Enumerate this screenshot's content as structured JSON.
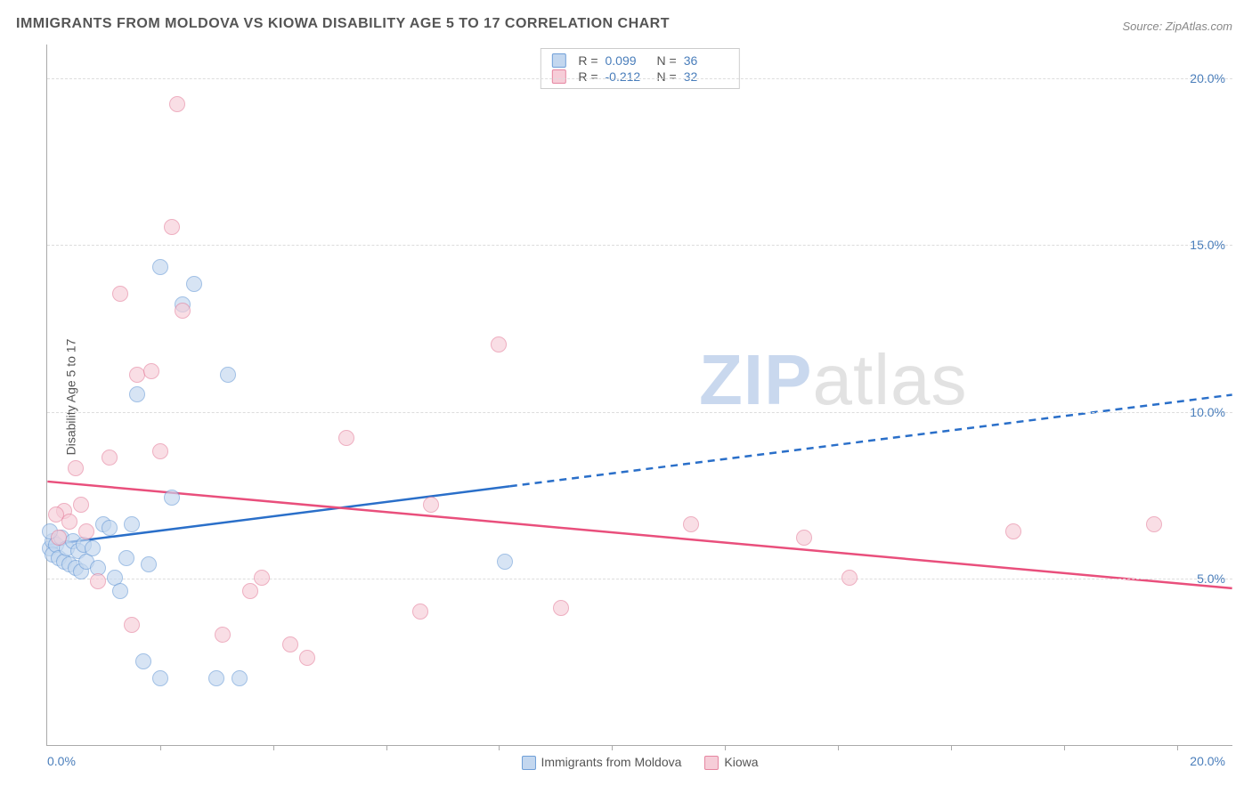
{
  "title": "IMMIGRANTS FROM MOLDOVA VS KIOWA DISABILITY AGE 5 TO 17 CORRELATION CHART",
  "source": "Source: ZipAtlas.com",
  "ylabel": "Disability Age 5 to 17",
  "watermark_zip": "ZIP",
  "watermark_atlas": "atlas",
  "chart": {
    "type": "scatter",
    "background_color": "#ffffff",
    "grid_color": "#dddddd",
    "axis_color": "#aaaaaa",
    "label_color": "#555555",
    "tick_label_color": "#4a7ebb",
    "title_fontsize": 16,
    "label_fontsize": 14,
    "tick_fontsize": 14,
    "xlim": [
      0,
      21
    ],
    "ylim": [
      0,
      21
    ],
    "y_ticks": [
      5,
      10,
      15,
      20
    ],
    "y_tick_labels": [
      "5.0%",
      "10.0%",
      "15.0%",
      "20.0%"
    ],
    "x_minor_ticks": [
      2,
      4,
      6,
      8,
      10,
      12,
      14,
      16,
      18,
      20
    ],
    "x_origin_label": "0.0%",
    "x_max_label": "20.0%",
    "marker_radius": 9,
    "marker_stroke_width": 1.5,
    "line_width": 2.5,
    "series": [
      {
        "name": "Immigrants from Moldova",
        "fill": "#c3d7ef",
        "stroke": "#6f9fd8",
        "line_color": "#2a6fc9",
        "fill_opacity": 0.65,
        "R": "0.099",
        "N": "36",
        "trend": {
          "y_at_x0": 6.0,
          "y_at_xmax": 10.5,
          "solid_until_x": 8.2
        },
        "points": [
          {
            "x": 0.05,
            "y": 5.9
          },
          {
            "x": 0.1,
            "y": 6.1
          },
          {
            "x": 0.1,
            "y": 5.7
          },
          {
            "x": 0.15,
            "y": 6.0
          },
          {
            "x": 0.2,
            "y": 5.6
          },
          {
            "x": 0.25,
            "y": 6.2
          },
          {
            "x": 0.3,
            "y": 5.5
          },
          {
            "x": 0.35,
            "y": 5.9
          },
          {
            "x": 0.4,
            "y": 5.4
          },
          {
            "x": 0.45,
            "y": 6.1
          },
          {
            "x": 0.5,
            "y": 5.3
          },
          {
            "x": 0.55,
            "y": 5.8
          },
          {
            "x": 0.6,
            "y": 5.2
          },
          {
            "x": 0.65,
            "y": 6.0
          },
          {
            "x": 0.7,
            "y": 5.5
          },
          {
            "x": 0.8,
            "y": 5.9
          },
          {
            "x": 0.9,
            "y": 5.3
          },
          {
            "x": 1.0,
            "y": 6.6
          },
          {
            "x": 1.1,
            "y": 6.5
          },
          {
            "x": 1.2,
            "y": 5.0
          },
          {
            "x": 1.3,
            "y": 4.6
          },
          {
            "x": 1.4,
            "y": 5.6
          },
          {
            "x": 1.5,
            "y": 6.6
          },
          {
            "x": 1.6,
            "y": 10.5
          },
          {
            "x": 1.7,
            "y": 2.5
          },
          {
            "x": 1.8,
            "y": 5.4
          },
          {
            "x": 2.0,
            "y": 14.3
          },
          {
            "x": 2.2,
            "y": 7.4
          },
          {
            "x": 2.4,
            "y": 13.2
          },
          {
            "x": 2.6,
            "y": 13.8
          },
          {
            "x": 3.0,
            "y": 2.0
          },
          {
            "x": 3.2,
            "y": 11.1
          },
          {
            "x": 3.4,
            "y": 2.0
          },
          {
            "x": 2.0,
            "y": 2.0
          },
          {
            "x": 8.1,
            "y": 5.5
          },
          {
            "x": 0.05,
            "y": 6.4
          }
        ]
      },
      {
        "name": "Kiowa",
        "fill": "#f6cdd8",
        "stroke": "#e685a0",
        "line_color": "#e94f7c",
        "fill_opacity": 0.65,
        "R": "-0.212",
        "N": "32",
        "trend": {
          "y_at_x0": 7.9,
          "y_at_xmax": 4.7,
          "solid_until_x": 21
        },
        "points": [
          {
            "x": 0.3,
            "y": 7.0
          },
          {
            "x": 0.4,
            "y": 6.7
          },
          {
            "x": 0.5,
            "y": 8.3
          },
          {
            "x": 0.6,
            "y": 7.2
          },
          {
            "x": 0.7,
            "y": 6.4
          },
          {
            "x": 0.9,
            "y": 4.9
          },
          {
            "x": 1.1,
            "y": 8.6
          },
          {
            "x": 1.3,
            "y": 13.5
          },
          {
            "x": 1.5,
            "y": 3.6
          },
          {
            "x": 1.6,
            "y": 11.1
          },
          {
            "x": 1.85,
            "y": 11.2
          },
          {
            "x": 2.0,
            "y": 8.8
          },
          {
            "x": 2.2,
            "y": 15.5
          },
          {
            "x": 2.3,
            "y": 19.2
          },
          {
            "x": 2.4,
            "y": 13.0
          },
          {
            "x": 3.1,
            "y": 3.3
          },
          {
            "x": 3.6,
            "y": 4.6
          },
          {
            "x": 3.8,
            "y": 5.0
          },
          {
            "x": 4.3,
            "y": 3.0
          },
          {
            "x": 4.6,
            "y": 2.6
          },
          {
            "x": 5.3,
            "y": 9.2
          },
          {
            "x": 6.6,
            "y": 4.0
          },
          {
            "x": 6.8,
            "y": 7.2
          },
          {
            "x": 8.0,
            "y": 12.0
          },
          {
            "x": 9.1,
            "y": 4.1
          },
          {
            "x": 11.4,
            "y": 6.6
          },
          {
            "x": 13.4,
            "y": 6.2
          },
          {
            "x": 14.2,
            "y": 5.0
          },
          {
            "x": 17.1,
            "y": 6.4
          },
          {
            "x": 19.6,
            "y": 6.6
          },
          {
            "x": 0.2,
            "y": 6.2
          },
          {
            "x": 0.15,
            "y": 6.9
          }
        ]
      }
    ],
    "top_legend": {
      "r_label": "R =",
      "n_label": "N ="
    }
  }
}
